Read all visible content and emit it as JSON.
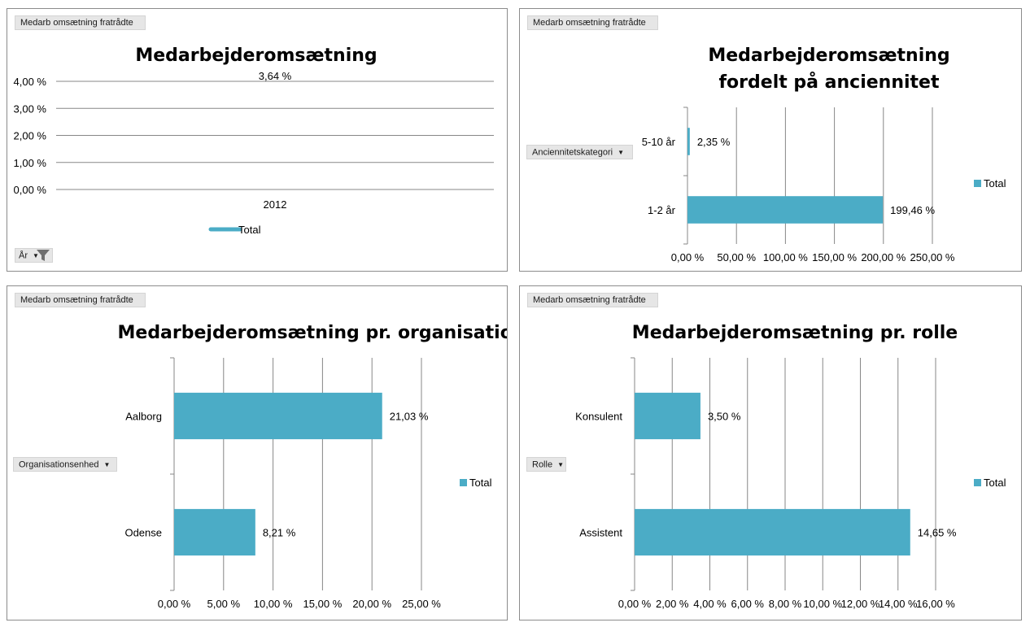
{
  "colors": {
    "series": "#4bacc6",
    "grid": "#878787",
    "axis": "#878787"
  },
  "panels": {
    "p1": {
      "filter_button": "Medarb omsætning fratrådte",
      "axis_field": "År",
      "filter_icon": "funnel-icon"
    },
    "p2": {
      "filter_button": "Medarb omsætning fratrådte",
      "axis_field": "Anciennitetskategori"
    },
    "p3": {
      "filter_button": "Medarb omsætning fratrådte",
      "axis_field": "Organisationsenhed"
    },
    "p4": {
      "filter_button": "Medarb omsætning fratrådte",
      "axis_field": "Rolle"
    }
  },
  "chart_data": [
    {
      "id": "p1",
      "type": "line",
      "title": [
        "Medarbejderomsætning"
      ],
      "categories": [
        "2012"
      ],
      "series": [
        {
          "name": "Total",
          "values": [
            3.64
          ]
        }
      ],
      "data_labels": [
        "3,64 %"
      ],
      "ylim": [
        0,
        4
      ],
      "y_ticks": [
        0,
        1,
        2,
        3,
        4
      ],
      "y_tick_labels": [
        "0,00 %",
        "1,00 %",
        "2,00 %",
        "3,00 %",
        "4,00 %"
      ],
      "legend": "bottom",
      "legend_label": "Total"
    },
    {
      "id": "p2",
      "type": "bar",
      "orientation": "horizontal",
      "title": [
        "Medarbejderomsætning",
        "fordelt på anciennitet"
      ],
      "categories": [
        "5-10 år",
        "1-2 år"
      ],
      "series": [
        {
          "name": "Total",
          "values": [
            2.35,
            199.46
          ]
        }
      ],
      "data_labels": [
        "2,35 %",
        "199,46 %"
      ],
      "xlim": [
        0,
        250
      ],
      "x_ticks": [
        0,
        50,
        100,
        150,
        200,
        250
      ],
      "x_tick_labels": [
        "0,00 %",
        "50,00 %",
        "100,00 %",
        "150,00 %",
        "200,00 %",
        "250,00 %"
      ],
      "legend": "right",
      "legend_label": "Total"
    },
    {
      "id": "p3",
      "type": "bar",
      "orientation": "horizontal",
      "title": [
        "Medarbejderomsætning pr. organisation"
      ],
      "categories": [
        "Aalborg",
        "Odense"
      ],
      "series": [
        {
          "name": "Total",
          "values": [
            21.03,
            8.21
          ]
        }
      ],
      "data_labels": [
        "21,03 %",
        "8,21 %"
      ],
      "xlim": [
        0,
        25
      ],
      "x_ticks": [
        0,
        5,
        10,
        15,
        20,
        25
      ],
      "x_tick_labels": [
        "0,00 %",
        "5,00 %",
        "10,00 %",
        "15,00 %",
        "20,00 %",
        "25,00 %"
      ],
      "legend": "right",
      "legend_label": "Total"
    },
    {
      "id": "p4",
      "type": "bar",
      "orientation": "horizontal",
      "title": [
        "Medarbejderomsætning pr. rolle"
      ],
      "categories": [
        "Konsulent",
        "Assistent"
      ],
      "series": [
        {
          "name": "Total",
          "values": [
            3.5,
            14.65
          ]
        }
      ],
      "data_labels": [
        "3,50 %",
        "14,65 %"
      ],
      "xlim": [
        0,
        16
      ],
      "x_ticks": [
        0,
        2,
        4,
        6,
        8,
        10,
        12,
        14,
        16
      ],
      "x_tick_labels": [
        "0,00 %",
        "2,00 %",
        "4,00 %",
        "6,00 %",
        "8,00 %",
        "10,00 %",
        "12,00 %",
        "14,00 %",
        "16,00 %"
      ],
      "legend": "right",
      "legend_label": "Total"
    }
  ]
}
